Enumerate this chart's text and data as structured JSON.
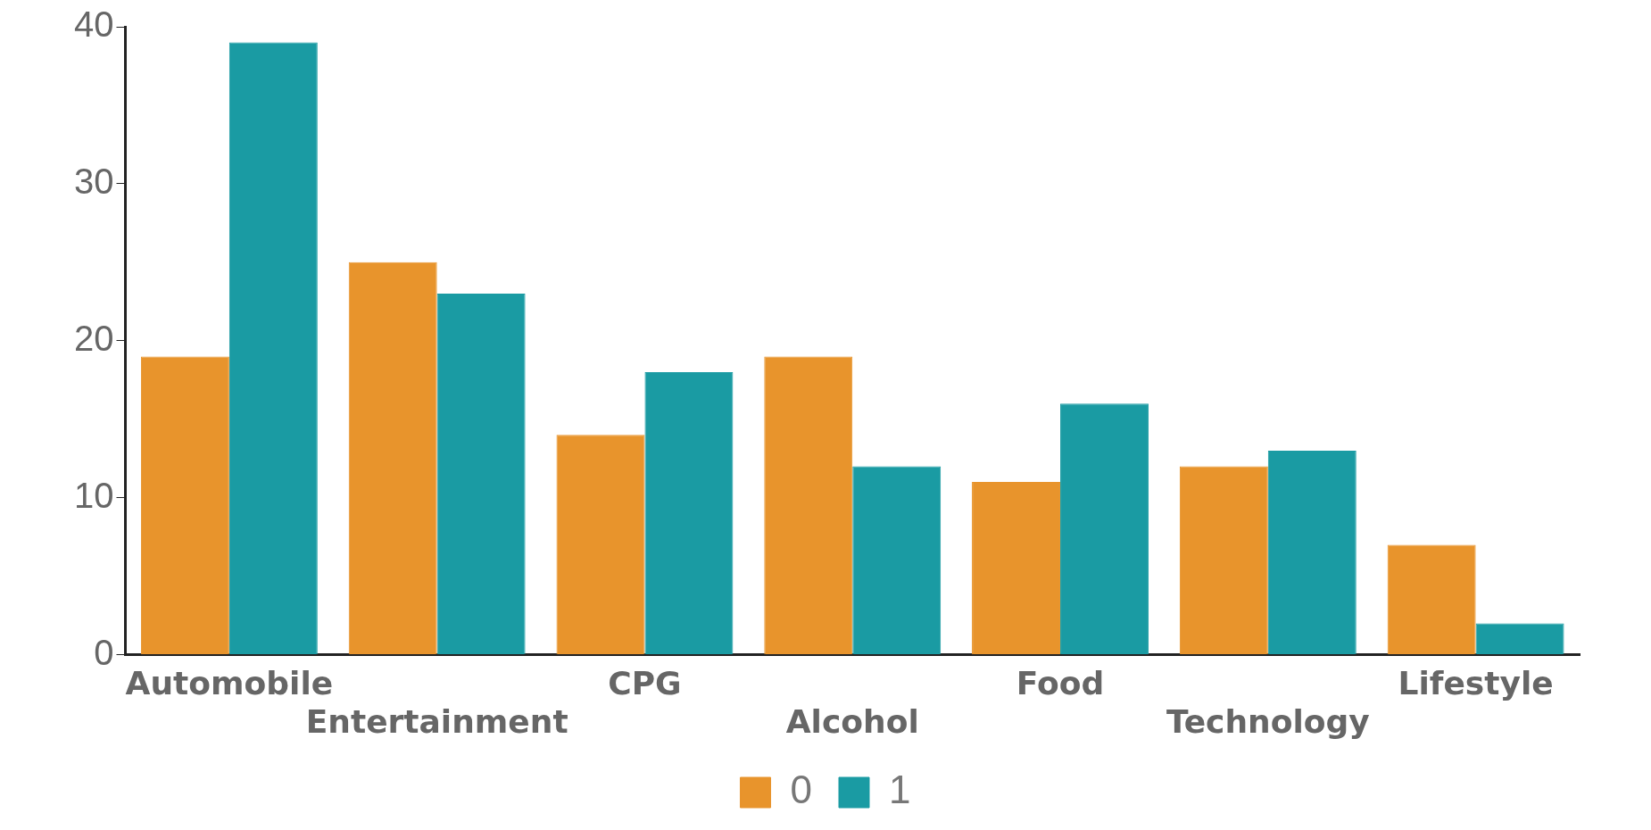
{
  "chart_data": {
    "type": "bar",
    "categories": [
      "Automobile",
      "Entertainment",
      "CPG",
      "Alcohol",
      "Food",
      "Technology",
      "Lifestyle"
    ],
    "series": [
      {
        "name": "0",
        "color": "#e8942c",
        "values": [
          19,
          25,
          14,
          19,
          11,
          12,
          7
        ]
      },
      {
        "name": "1",
        "color": "#1a9ba3",
        "values": [
          39,
          23,
          18,
          12,
          16,
          13,
          2
        ]
      }
    ],
    "ylim": [
      0,
      40
    ],
    "yticks": [
      0,
      10,
      20,
      30,
      40
    ],
    "grid": false,
    "legend": "bottom"
  }
}
